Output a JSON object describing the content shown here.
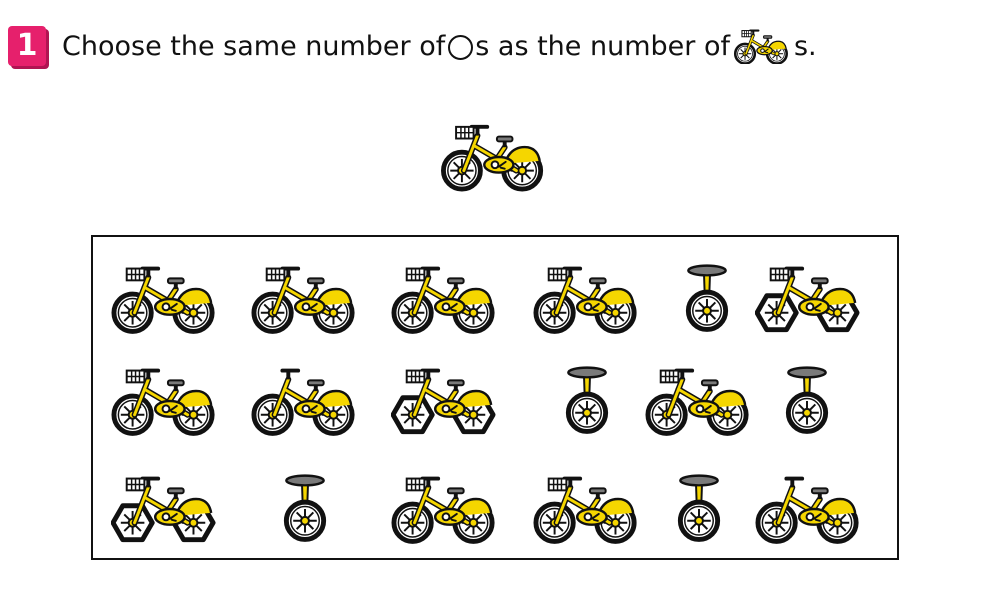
{
  "badge": {
    "number": "1"
  },
  "question": {
    "part1": "Choose the same number of ",
    "circle_icon": "open-circle-icon",
    "part2": "s as the number of ",
    "bike_icon": "bicycle-icon",
    "part3": "s."
  },
  "colors": {
    "badge": "#e6206c",
    "frame_yellow": "#f5d600",
    "outline": "#111111",
    "seat_gray": "#7a7a7a"
  },
  "reference_item": "bicycle",
  "rows": [
    [
      "bicycle",
      "bicycle",
      "bicycle",
      "bicycle",
      "unicycle",
      "hexagon-wheel-bicycle"
    ],
    [
      "bicycle",
      "bicycle-no-basket",
      "hexagon-wheel-bicycle",
      "unicycle",
      "bicycle",
      "unicycle"
    ],
    [
      "hexagon-wheel-bicycle",
      "unicycle",
      "bicycle",
      "bicycle",
      "unicycle",
      "bicycle-no-basket"
    ]
  ]
}
